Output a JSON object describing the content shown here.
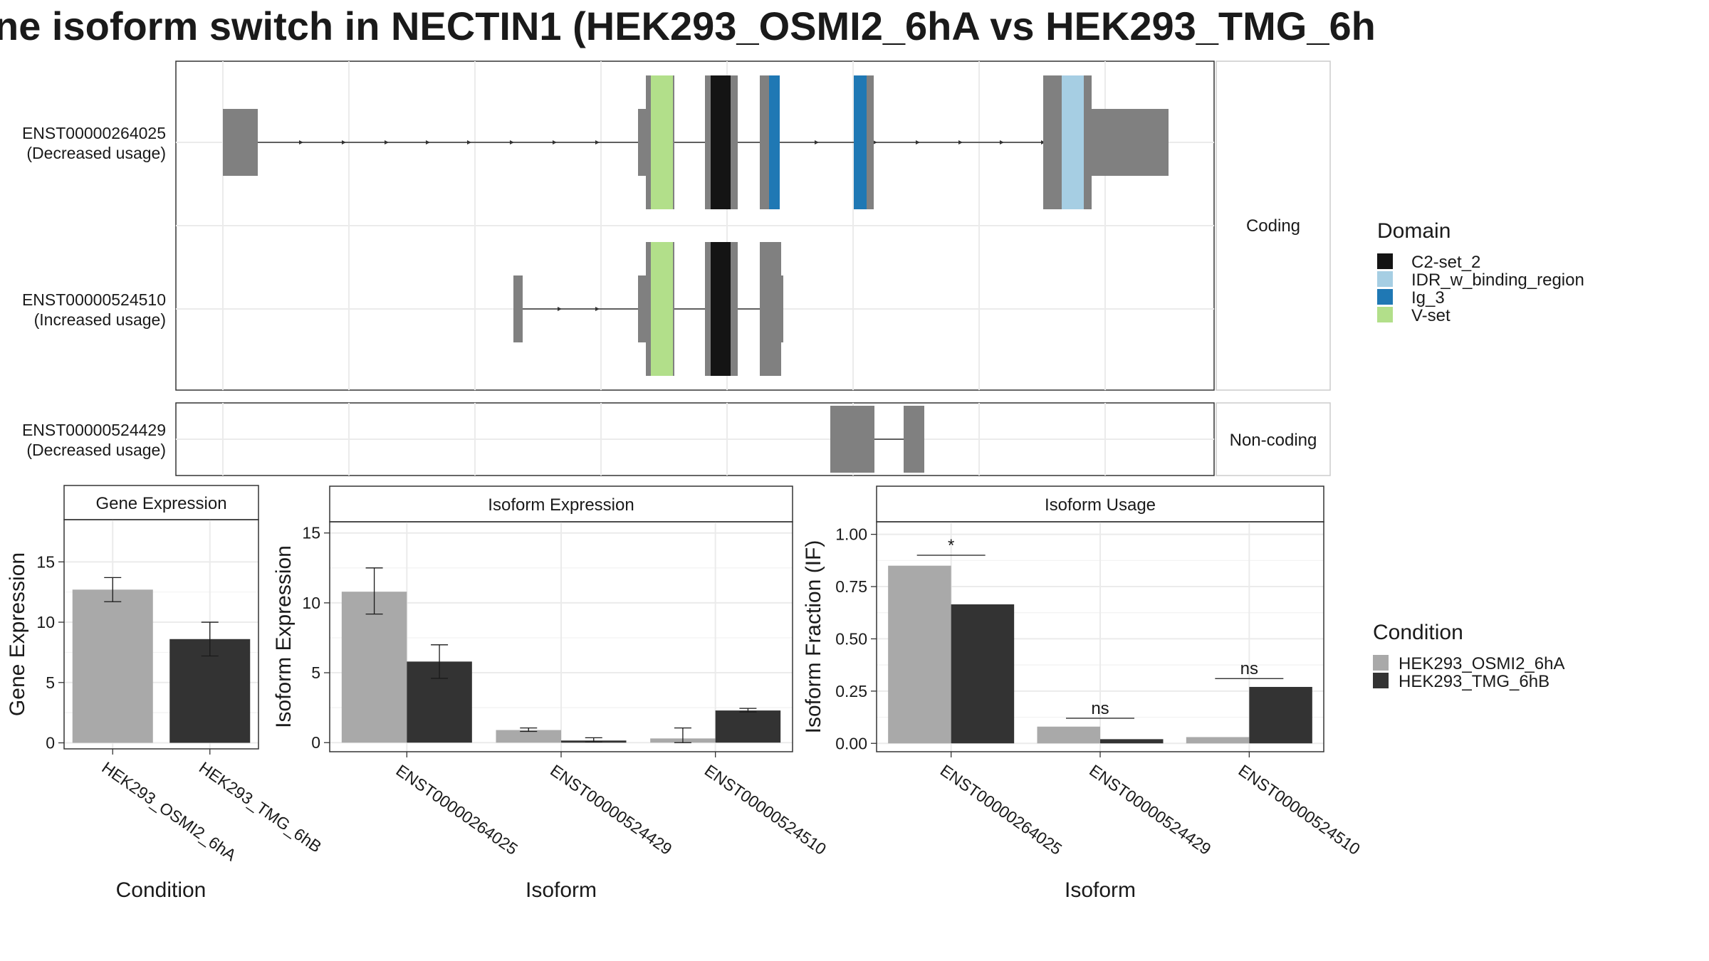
{
  "title": "ne isoform switch in NECTIN1 (HEK293_OSMI2_6hA vs HEK293_TMG_6h",
  "colors": {
    "condA": "#a9a9a9",
    "condB": "#333333",
    "exon": "#808080",
    "C2-set_2": "#141414",
    "IDR_w_binding_region": "#a6cee3",
    "Ig_3": "#1f78b4",
    "V-set": "#b2df8a"
  },
  "structure": {
    "tracks": [
      {
        "id": "ENST00000264025",
        "usage": "(Decreased usage)"
      },
      {
        "id": "ENST00000524510",
        "usage": "(Increased usage)"
      },
      {
        "id": "ENST00000524429",
        "usage": "(Decreased usage)"
      }
    ],
    "strip_coding": "Coding",
    "strip_noncoding": "Non-coding",
    "domain_legend": {
      "title": "Domain",
      "items": [
        {
          "name": "C2-set_2",
          "color": "#141414"
        },
        {
          "name": "IDR_w_binding_region",
          "color": "#a6cee3"
        },
        {
          "name": "Ig_3",
          "color": "#1f78b4"
        },
        {
          "name": "V-set",
          "color": "#b2df8a"
        }
      ]
    }
  },
  "condition_legend": {
    "title": "Condition",
    "items": [
      {
        "name": "HEK293_OSMI2_6hA",
        "color": "#a9a9a9"
      },
      {
        "name": "HEK293_TMG_6hB",
        "color": "#333333"
      }
    ]
  },
  "chart_data": [
    {
      "type": "bar",
      "title": "Gene Expression",
      "xlabel": "Condition",
      "ylabel": "Gene Expression",
      "categories": [
        "HEK293_OSMI2_6hA",
        "HEK293_TMG_6hB"
      ],
      "values": [
        12.7,
        8.6
      ],
      "errors": [
        [
          11.7,
          13.7
        ],
        [
          7.2,
          10.0
        ]
      ],
      "ylim": [
        -0.5,
        18.5
      ],
      "yticks": [
        0,
        5,
        10,
        15
      ],
      "grid": true
    },
    {
      "type": "bar",
      "title": "Isoform Expression",
      "xlabel": "Isoform",
      "ylabel": "Isoform Expression",
      "categories": [
        "ENST00000264025",
        "ENST00000524429",
        "ENST00000524510"
      ],
      "series": [
        {
          "name": "HEK293_OSMI2_6hA",
          "values": [
            10.8,
            0.9,
            0.3
          ],
          "errors": [
            [
              9.2,
              12.5
            ],
            [
              0.8,
              1.05
            ],
            [
              0.0,
              1.05
            ]
          ]
        },
        {
          "name": "HEK293_TMG_6hB",
          "values": [
            5.8,
            0.15,
            2.3
          ],
          "errors": [
            [
              4.6,
              7.0
            ],
            [
              0.05,
              0.35
            ],
            [
              2.2,
              2.45
            ]
          ]
        }
      ],
      "ylim": [
        -0.65,
        15.8
      ],
      "yticks": [
        0,
        5,
        10,
        15
      ],
      "grid": true
    },
    {
      "type": "bar",
      "title": "Isoform Usage",
      "xlabel": "Isoform",
      "ylabel": "Isoform Fraction (IF)",
      "categories": [
        "ENST00000264025",
        "ENST00000524429",
        "ENST00000524510"
      ],
      "series": [
        {
          "name": "HEK293_OSMI2_6hA",
          "values": [
            0.85,
            0.08,
            0.03
          ]
        },
        {
          "name": "HEK293_TMG_6hB",
          "values": [
            0.665,
            0.02,
            0.27
          ]
        }
      ],
      "significance": [
        {
          "label": "*",
          "y": 0.9
        },
        {
          "label": "ns",
          "y": 0.12
        },
        {
          "label": "ns",
          "y": 0.31
        }
      ],
      "ylim": [
        -0.04,
        1.06
      ],
      "yticks": [
        0.0,
        0.25,
        0.5,
        0.75,
        1.0
      ],
      "ytick_labels": [
        "0.00",
        "0.25",
        "0.50",
        "0.75",
        "1.00"
      ],
      "grid": true
    }
  ]
}
